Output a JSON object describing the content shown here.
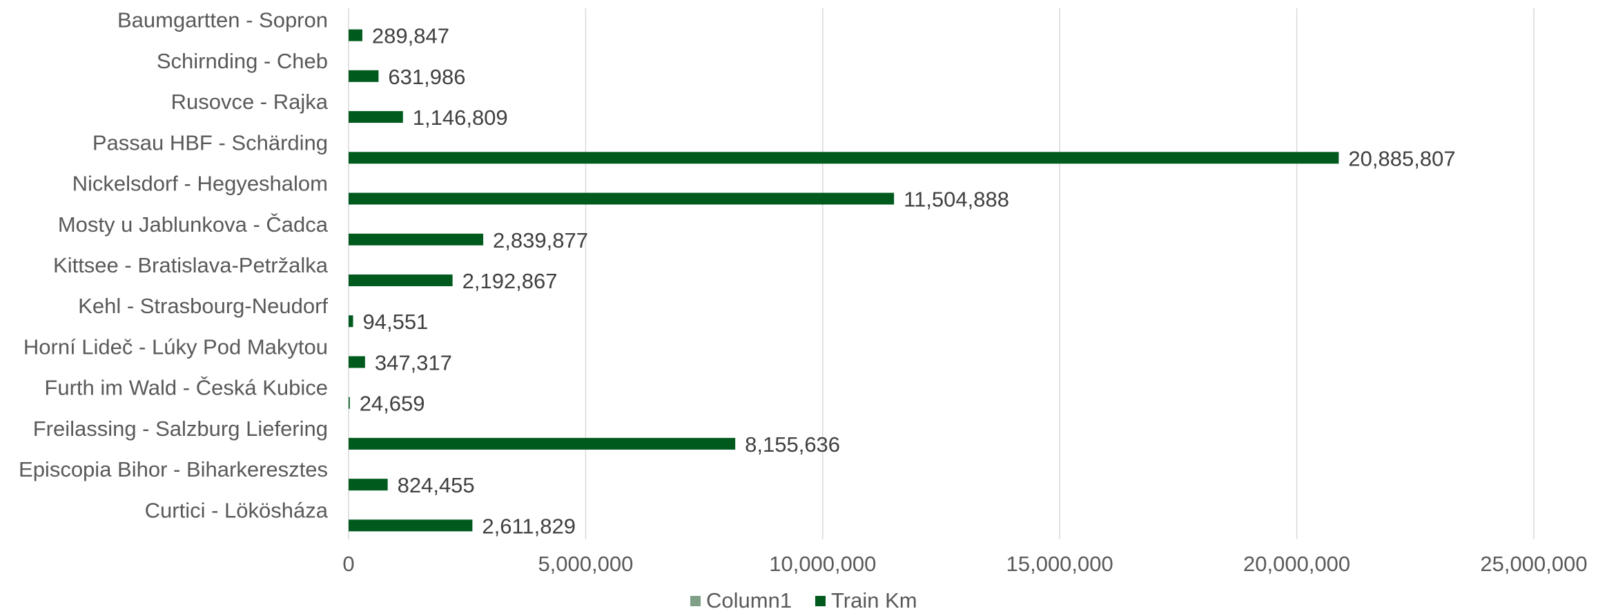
{
  "chart_data": {
    "type": "bar",
    "orientation": "horizontal",
    "title": "",
    "xlabel": "",
    "ylabel": "",
    "xlim": [
      0,
      25000000
    ],
    "x_ticks": [
      0,
      5000000,
      10000000,
      15000000,
      20000000,
      25000000
    ],
    "x_tick_labels": [
      "0",
      "5,000,000",
      "10,000,000",
      "15,000,000",
      "20,000,000",
      "25,000,000"
    ],
    "grid": true,
    "legend_position": "bottom",
    "categories": [
      "Baumgartten - Sopron",
      "Schirnding - Cheb",
      "Rusovce - Rajka",
      "Passau HBF - Schärding",
      "Nickelsdorf - Hegyeshalom",
      "Mosty u Jablunkova - Čadca",
      "Kittsee - Bratislava-Petržalka",
      "Kehl - Strasbourg-Neudorf",
      "Horní Lideč - Lúky Pod Makytou",
      "Furth im Wald - Česká Kubice",
      "Freilassing - Salzburg Liefering",
      "Episcopia Bihor - Biharkeresztes",
      "Curtici - Lökösháza"
    ],
    "series": [
      {
        "name": "Column1",
        "color": "#7f9f86",
        "values": [
          0,
          0,
          0,
          0,
          0,
          0,
          0,
          0,
          0,
          0,
          0,
          0,
          0
        ]
      },
      {
        "name": "Train Km",
        "color": "#005a1e",
        "values": [
          289847,
          631986,
          1146809,
          20885807,
          11504888,
          2839877,
          2192867,
          94551,
          347317,
          24659,
          8155636,
          824455,
          2611829
        ],
        "labels": [
          "289,847",
          "631,986",
          "1,146,809",
          "20,885,807",
          "11,504,888",
          "2,839,877",
          "2,192,867",
          "94,551",
          "347,317",
          "24,659",
          "8,155,636",
          "824,455",
          "2,611,829"
        ]
      }
    ]
  }
}
